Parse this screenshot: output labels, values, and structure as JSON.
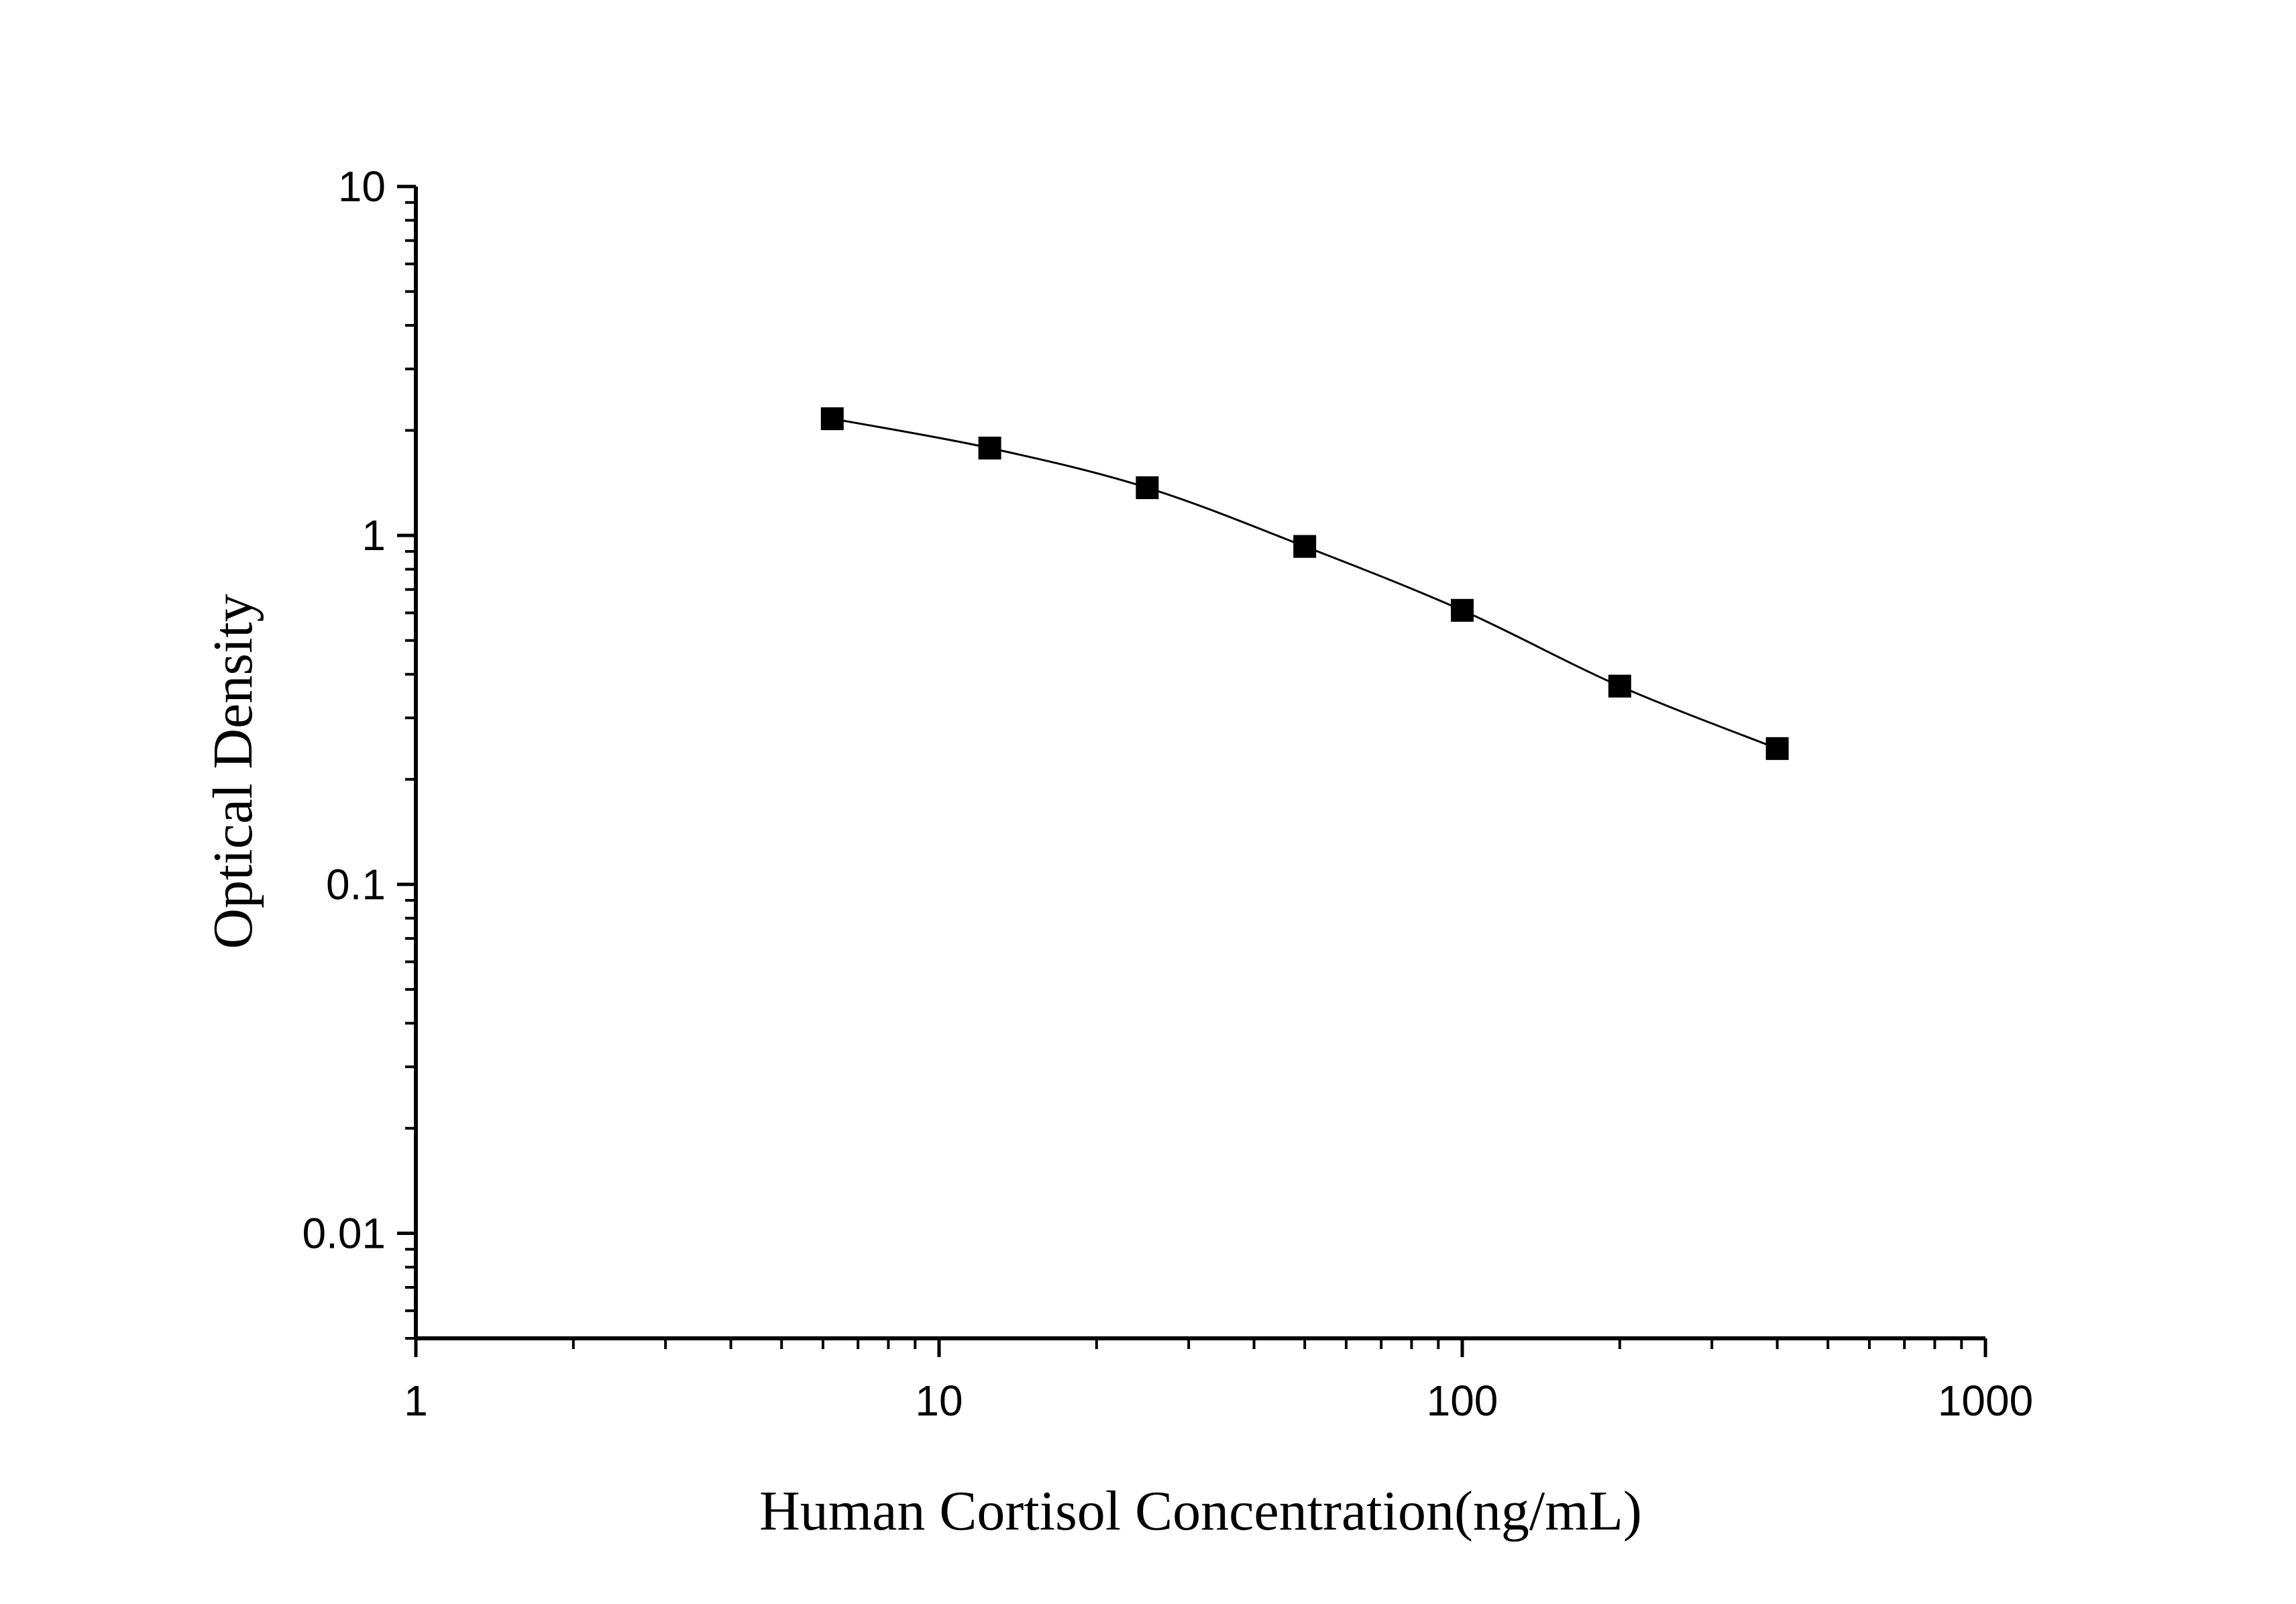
{
  "chart_data": {
    "type": "scatter",
    "xlabel": "Human Cortisol Concentration(ng/mL)",
    "ylabel": "Optical Density",
    "x_scale": "log",
    "y_scale": "log",
    "xlim": [
      1,
      1000
    ],
    "ylim": [
      0.005,
      10
    ],
    "x_ticks": [
      "1",
      "10",
      "100",
      "1000"
    ],
    "y_ticks": [
      "0.01",
      "0.1",
      "1",
      "10"
    ],
    "grid": false,
    "marker": "square",
    "line": "smooth",
    "color": "#000000",
    "series": [
      {
        "x": [
          6.25,
          12.5,
          25,
          50,
          100,
          200,
          400
        ],
        "y": [
          2.16,
          1.78,
          1.37,
          0.93,
          0.61,
          0.37,
          0.245
        ]
      }
    ]
  }
}
